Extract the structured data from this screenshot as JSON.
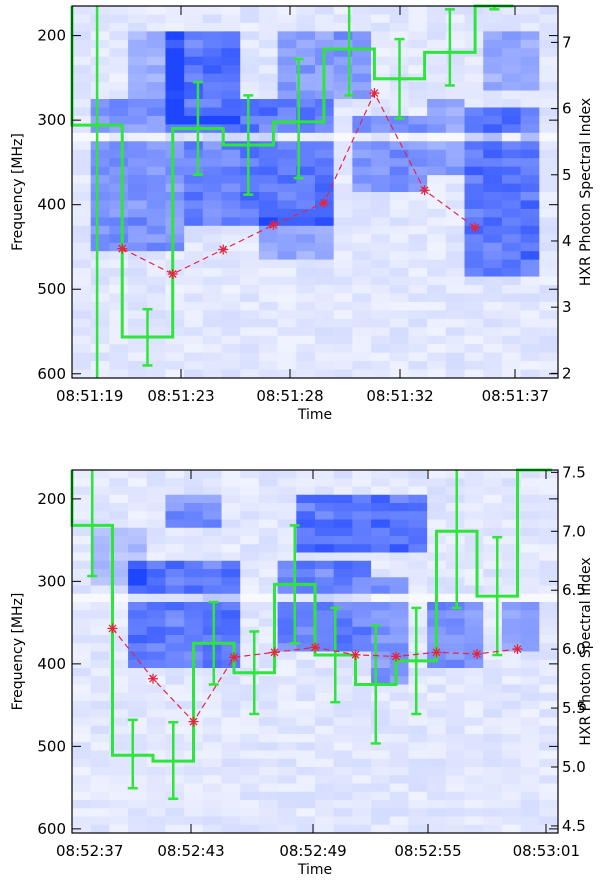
{
  "chart_data": [
    {
      "type": "heatmap",
      "title": "",
      "xlabel": "Time",
      "ylabel": "Frequency [MHz]",
      "y2label": "HXR Photon Spectral Index",
      "x_tick_labels": [
        "08:51:19",
        "08:51:23",
        "08:51:28",
        "08:51:32",
        "08:51:37"
      ],
      "y_ticks": [
        200,
        300,
        400,
        500,
        600
      ],
      "y2_ticks": [
        2,
        3,
        4,
        5,
        6,
        7
      ],
      "y_range": [
        165,
        605
      ],
      "y2_range": [
        1.93,
        7.55
      ],
      "x_range_s": [
        0,
        18
      ],
      "y_axis_inverted": true,
      "colors": {
        "spectrogram": "#1e46ff",
        "histogram": "#2ee63a",
        "series": "#e8243c"
      },
      "series": [
        {
          "style": "histogram-step-with-error-bars",
          "axis": "right",
          "bins": [
            {
              "x0": 0.0,
              "x1": 1.86,
              "value": 5.75,
              "err_low": 1.9,
              "err_high": 7.6
            },
            {
              "x0": 1.86,
              "x1": 3.73,
              "value": 2.55,
              "err_low": 2.12,
              "err_high": 2.97
            },
            {
              "x0": 3.73,
              "x1": 5.6,
              "value": 5.7,
              "err_low": 5.0,
              "err_high": 6.4
            },
            {
              "x0": 5.6,
              "x1": 7.46,
              "value": 5.45,
              "err_low": 4.7,
              "err_high": 6.2
            },
            {
              "x0": 7.46,
              "x1": 9.33,
              "value": 5.8,
              "err_low": 4.95,
              "err_high": 6.75
            },
            {
              "x0": 9.33,
              "x1": 11.2,
              "value": 6.9,
              "err_low": 6.2,
              "err_high": 7.55
            },
            {
              "x0": 11.2,
              "x1": 13.06,
              "value": 6.45,
              "err_low": 5.85,
              "err_high": 7.05
            },
            {
              "x0": 13.06,
              "x1": 14.93,
              "value": 6.85,
              "err_low": 6.35,
              "err_high": 7.5
            },
            {
              "x0": 14.93,
              "x1": 16.35,
              "value": 7.55,
              "err_low": 7.5,
              "err_high": 7.55
            }
          ]
        },
        {
          "style": "dashed-line-star-markers",
          "axis": "left",
          "x": [
            1.86,
            3.73,
            5.6,
            7.46,
            9.33,
            11.2,
            13.06,
            14.93
          ],
          "y": [
            452,
            482,
            453,
            424,
            398,
            268,
            383,
            427
          ]
        }
      ]
    },
    {
      "type": "heatmap",
      "title": "",
      "xlabel": "Time",
      "ylabel": "Frequency [MHz]",
      "y2label": "HXR Photon Spectral Index",
      "x_tick_labels": [
        "08:52:37",
        "08:52:43",
        "08:52:49",
        "08:52:55",
        "08:53:01"
      ],
      "y_ticks": [
        200,
        300,
        400,
        500,
        600
      ],
      "y2_ticks": [
        "4.5",
        "5.0",
        "5.5",
        "6.0",
        "6.5",
        "7.0",
        "7.5"
      ],
      "y_range": [
        165,
        605
      ],
      "y2_range": [
        4.44,
        7.52
      ],
      "x_range_s": [
        0,
        24
      ],
      "y_axis_inverted": true,
      "colors": {
        "spectrogram": "#1e46ff",
        "histogram": "#2ee63a",
        "series": "#e8243c"
      },
      "series": [
        {
          "style": "histogram-step-with-error-bars",
          "axis": "right",
          "bins": [
            {
              "x0": 0.0,
              "x1": 2.0,
              "value": 7.05,
              "err_low": 6.62,
              "err_high": 7.52
            },
            {
              "x0": 2.0,
              "x1": 4.0,
              "value": 5.1,
              "err_low": 4.82,
              "err_high": 5.4
            },
            {
              "x0": 4.0,
              "x1": 6.0,
              "value": 5.05,
              "err_low": 4.73,
              "err_high": 5.38
            },
            {
              "x0": 6.0,
              "x1": 8.0,
              "value": 6.05,
              "err_low": 5.7,
              "err_high": 6.4
            },
            {
              "x0": 8.0,
              "x1": 10.0,
              "value": 5.8,
              "err_low": 5.45,
              "err_high": 6.15
            },
            {
              "x0": 10.0,
              "x1": 12.0,
              "value": 6.55,
              "err_low": 6.05,
              "err_high": 7.05
            },
            {
              "x0": 12.0,
              "x1": 14.0,
              "value": 5.95,
              "err_low": 5.55,
              "err_high": 6.35
            },
            {
              "x0": 14.0,
              "x1": 16.0,
              "value": 5.7,
              "err_low": 5.2,
              "err_high": 6.2
            },
            {
              "x0": 16.0,
              "x1": 18.0,
              "value": 5.9,
              "err_low": 5.45,
              "err_high": 6.35
            },
            {
              "x0": 18.0,
              "x1": 20.0,
              "value": 7.0,
              "err_low": 6.35,
              "err_high": 7.52
            },
            {
              "x0": 20.0,
              "x1": 22.0,
              "value": 6.45,
              "err_low": 5.95,
              "err_high": 6.95
            },
            {
              "x0": 22.0,
              "x1": 23.7,
              "value": 7.52,
              "err_low": 7.52,
              "err_high": 7.52
            }
          ]
        },
        {
          "style": "dashed-line-star-markers",
          "axis": "left",
          "x": [
            2.0,
            4.0,
            6.0,
            8.0,
            10.0,
            12.0,
            14.0,
            16.0,
            18.0,
            20.0,
            22.0
          ],
          "y": [
            357,
            418,
            470,
            392,
            386,
            380,
            389,
            391,
            386,
            388,
            382
          ]
        }
      ]
    }
  ]
}
